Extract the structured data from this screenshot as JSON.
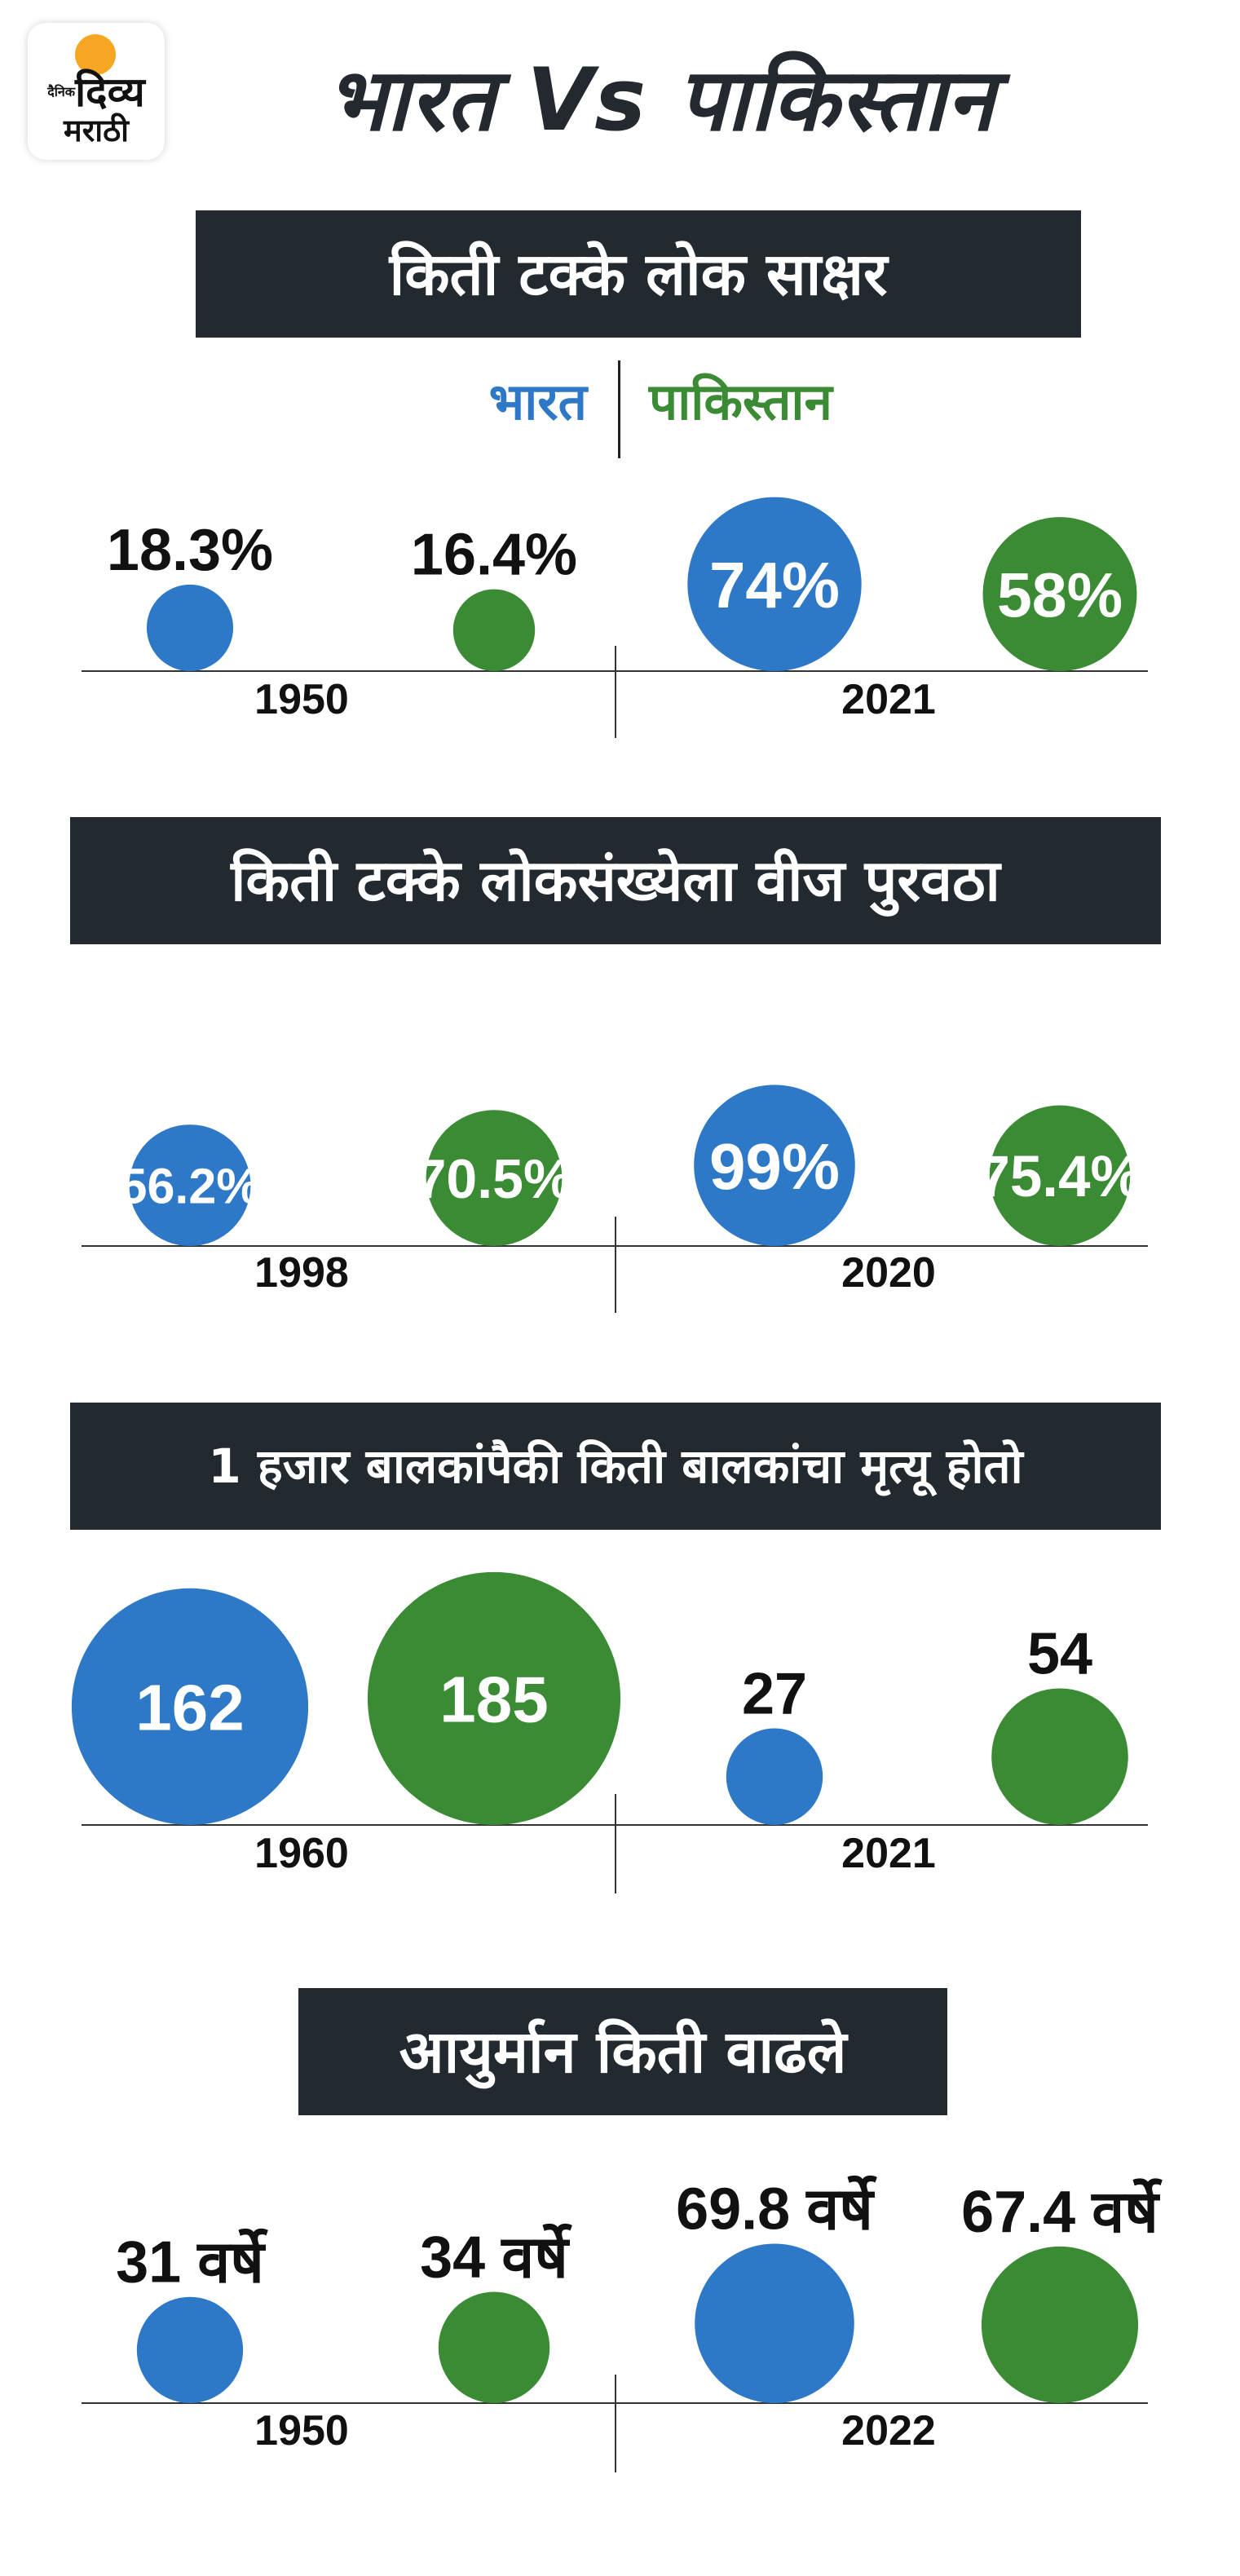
{
  "logo": {
    "top_small": "दैनिक",
    "line1": "दिव्य",
    "line2": "मराठी"
  },
  "title": "भारत Vs पाकिस्तान",
  "legend": {
    "india": "भारत",
    "pakistan": "पाकिस्तान"
  },
  "colors": {
    "india": "#2e78c8",
    "pakistan": "#3a8b34",
    "banner": "#222a30"
  },
  "chart_data": [
    {
      "type": "bubble",
      "title": "किती टक्के लोक साक्षर",
      "groups": [
        {
          "year": "1950",
          "india": {
            "value": 18.3,
            "label": "18.3%"
          },
          "pakistan": {
            "value": 16.4,
            "label": "16.4%"
          }
        },
        {
          "year": "2021",
          "india": {
            "value": 74,
            "label": "74%"
          },
          "pakistan": {
            "value": 58,
            "label": "58%"
          }
        }
      ]
    },
    {
      "type": "bubble",
      "title": "किती टक्के लोकसंख्येला वीज पुरवठा",
      "groups": [
        {
          "year": "1998",
          "india": {
            "value": 56.2,
            "label": "56.2%"
          },
          "pakistan": {
            "value": 70.5,
            "label": "70.5%"
          }
        },
        {
          "year": "2020",
          "india": {
            "value": 99,
            "label": "99%"
          },
          "pakistan": {
            "value": 75.4,
            "label": "75.4%"
          }
        }
      ]
    },
    {
      "type": "bubble",
      "title": "1 हजार बालकांपैकी किती बालकांचा मृत्यू होतो",
      "groups": [
        {
          "year": "1960",
          "india": {
            "value": 162,
            "label": "162"
          },
          "pakistan": {
            "value": 185,
            "label": "185"
          }
        },
        {
          "year": "2021",
          "india": {
            "value": 27,
            "label": "27"
          },
          "pakistan": {
            "value": 54,
            "label": "54"
          }
        }
      ]
    },
    {
      "type": "bubble",
      "title": "आयुर्मान किती वाढले",
      "groups": [
        {
          "year": "1950",
          "india": {
            "value": 31,
            "label": "31 वर्षे"
          },
          "pakistan": {
            "value": 34,
            "label": "34 वर्षे"
          }
        },
        {
          "year": "2022",
          "india": {
            "value": 69.8,
            "label": "69.8 वर्षे"
          },
          "pakistan": {
            "value": 67.4,
            "label": "67.4 वर्षे"
          }
        }
      ]
    }
  ]
}
